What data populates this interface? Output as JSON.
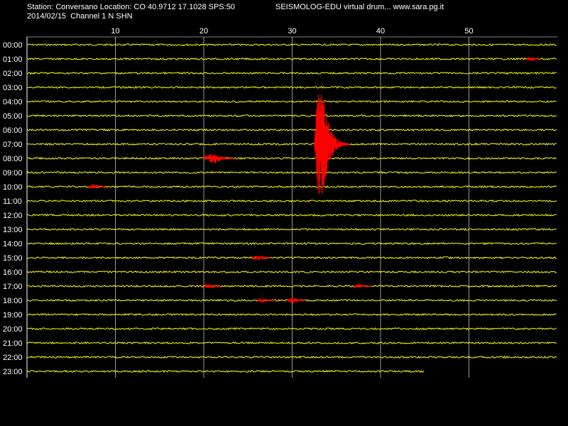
{
  "header": {
    "station_line": "Station: Conversano Location: CO 40.9712 17.1028 SPS:50",
    "date_line": "2014/02/15  Channel 1 N SHN",
    "product_line": "SEISMOLOG-EDU virtual drum... www.sara.pg.it"
  },
  "colors": {
    "background": "#000000",
    "trace": "#ffff00",
    "event": "#ff0000",
    "grid": "#ffffff",
    "text": "#ffffff"
  },
  "chart_data": {
    "type": "line",
    "title": "",
    "xlabel": "",
    "ylabel": "",
    "x_unit": "minute",
    "xlim": [
      0,
      60
    ],
    "x_ticks": [
      10,
      20,
      30,
      40,
      50
    ],
    "grid": true,
    "rows": [
      "00:00",
      "01:00",
      "02:00",
      "03:00",
      "04:00",
      "05:00",
      "06:00",
      "07:00",
      "08:00",
      "09:00",
      "10:00",
      "11:00",
      "12:00",
      "13:00",
      "14:00",
      "15:00",
      "16:00",
      "17:00",
      "18:00",
      "19:00",
      "20:00",
      "21:00",
      "22:00",
      "23:00"
    ],
    "last_row_end_minute": 45,
    "events": [
      {
        "hour": 1,
        "start": 56.5,
        "end": 58.0,
        "amp": 3
      },
      {
        "hour": 8,
        "start": 20.0,
        "end": 23.5,
        "amp": 7
      },
      {
        "hour": 10,
        "start": 7.0,
        "end": 9.0,
        "amp": 3
      },
      {
        "hour": 15,
        "start": 25.5,
        "end": 27.5,
        "amp": 3
      },
      {
        "hour": 17,
        "start": 20.0,
        "end": 22.0,
        "amp": 3
      },
      {
        "hour": 17,
        "start": 37.0,
        "end": 39.0,
        "amp": 2
      },
      {
        "hour": 18,
        "start": 26.0,
        "end": 28.0,
        "amp": 2
      },
      {
        "hour": 18,
        "start": 29.5,
        "end": 31.5,
        "amp": 3
      },
      {
        "hour": 7,
        "start": 32.5,
        "end": 36.5,
        "amp": 80
      }
    ]
  }
}
